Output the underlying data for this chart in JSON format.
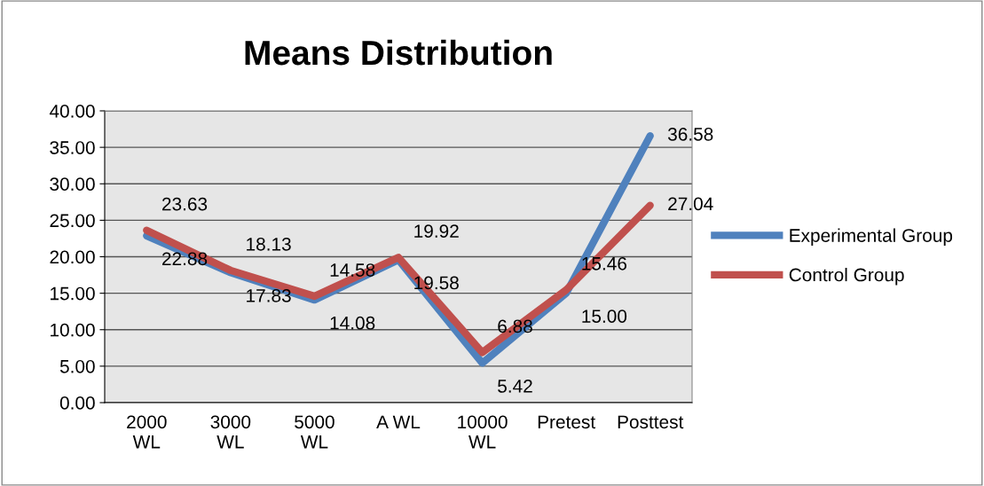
{
  "chart_data": {
    "type": "line",
    "title": "Means Distribution",
    "categories": [
      "2000\nWL",
      "3000\nWL",
      "5000\nWL",
      "A WL",
      "10000\nWL",
      "Pretest",
      "Posttest"
    ],
    "series": [
      {
        "name": "Experimental Group",
        "color": "#4f81bd",
        "values": [
          22.88,
          17.83,
          14.08,
          19.58,
          5.42,
          15.0,
          36.58
        ],
        "value_labels": [
          "22.88",
          "17.83",
          "14.08",
          "19.58",
          "5.42",
          "15.00",
          "36.58"
        ]
      },
      {
        "name": "Control Group",
        "color": "#c0504d",
        "values": [
          23.63,
          18.13,
          14.58,
          19.92,
          6.88,
          15.46,
          27.04
        ],
        "value_labels": [
          "23.63",
          "18.13",
          "14.58",
          "19.92",
          "6.88",
          "15.46",
          "27.04"
        ]
      }
    ],
    "ylim": [
      0,
      40
    ],
    "yticks": [
      {
        "value": 0,
        "label": "0.00"
      },
      {
        "value": 5,
        "label": "5.00"
      },
      {
        "value": 10,
        "label": "10.00"
      },
      {
        "value": 15,
        "label": "15.00"
      },
      {
        "value": 20,
        "label": "20.00"
      },
      {
        "value": 25,
        "label": "25.00"
      },
      {
        "value": 30,
        "label": "30.00"
      },
      {
        "value": 35,
        "label": "35.00"
      },
      {
        "value": 40,
        "label": "40.00"
      }
    ],
    "grid": "y",
    "legend": "right",
    "marker": "none",
    "line_style": "solid"
  }
}
